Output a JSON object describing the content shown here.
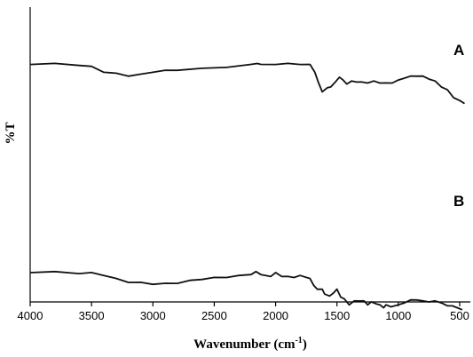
{
  "chart_data": {
    "type": "line",
    "xlabel": "Wavenumber (cm",
    "xlabel_sup": "-1",
    "xlabel_end": ")",
    "ylabel": "%T",
    "xlim": [
      4000,
      450
    ],
    "x_reversed": true,
    "xticks": [
      4000,
      3500,
      3000,
      2500,
      2000,
      1500,
      1000,
      500
    ],
    "grid": false,
    "series": [
      {
        "name": "A",
        "points": [
          [
            4000,
            0.8
          ],
          [
            3800,
            0.8
          ],
          [
            3600,
            0.79
          ],
          [
            3500,
            0.77
          ],
          [
            3400,
            0.72
          ],
          [
            3300,
            0.7
          ],
          [
            3200,
            0.68
          ],
          [
            3100,
            0.69
          ],
          [
            3000,
            0.72
          ],
          [
            2900,
            0.73
          ],
          [
            2800,
            0.74
          ],
          [
            2600,
            0.75
          ],
          [
            2400,
            0.77
          ],
          [
            2200,
            0.79
          ],
          [
            2150,
            0.81
          ],
          [
            2120,
            0.79
          ],
          [
            2000,
            0.8
          ],
          [
            1900,
            0.8
          ],
          [
            1800,
            0.8
          ],
          [
            1720,
            0.79
          ],
          [
            1680,
            0.72
          ],
          [
            1650,
            0.6
          ],
          [
            1620,
            0.52
          ],
          [
            1580,
            0.55
          ],
          [
            1550,
            0.57
          ],
          [
            1520,
            0.6
          ],
          [
            1480,
            0.67
          ],
          [
            1450,
            0.63
          ],
          [
            1420,
            0.6
          ],
          [
            1380,
            0.62
          ],
          [
            1340,
            0.62
          ],
          [
            1300,
            0.61
          ],
          [
            1250,
            0.61
          ],
          [
            1200,
            0.62
          ],
          [
            1150,
            0.61
          ],
          [
            1100,
            0.6
          ],
          [
            1050,
            0.61
          ],
          [
            1000,
            0.63
          ],
          [
            950,
            0.66
          ],
          [
            900,
            0.67
          ],
          [
            850,
            0.68
          ],
          [
            800,
            0.67
          ],
          [
            750,
            0.65
          ],
          [
            700,
            0.62
          ],
          [
            650,
            0.57
          ],
          [
            600,
            0.53
          ],
          [
            550,
            0.46
          ],
          [
            500,
            0.42
          ],
          [
            460,
            0.4
          ]
        ]
      },
      {
        "name": "B",
        "points": [
          [
            4000,
            0.16
          ],
          [
            3800,
            0.16
          ],
          [
            3600,
            0.15
          ],
          [
            3500,
            0.15
          ],
          [
            3400,
            0.13
          ],
          [
            3300,
            0.09
          ],
          [
            3200,
            0.06
          ],
          [
            3100,
            0.05
          ],
          [
            3000,
            0.04
          ],
          [
            2900,
            0.04
          ],
          [
            2800,
            0.05
          ],
          [
            2700,
            0.07
          ],
          [
            2600,
            0.09
          ],
          [
            2500,
            0.1
          ],
          [
            2400,
            0.11
          ],
          [
            2300,
            0.12
          ],
          [
            2200,
            0.14
          ],
          [
            2160,
            0.16
          ],
          [
            2120,
            0.14
          ],
          [
            2080,
            0.12
          ],
          [
            2040,
            0.12
          ],
          [
            2000,
            0.15
          ],
          [
            1950,
            0.12
          ],
          [
            1900,
            0.11
          ],
          [
            1850,
            0.11
          ],
          [
            1800,
            0.12
          ],
          [
            1720,
            0.1
          ],
          [
            1690,
            0.02
          ],
          [
            1660,
            -0.01
          ],
          [
            1620,
            -0.02
          ],
          [
            1600,
            -0.06
          ],
          [
            1560,
            -0.09
          ],
          [
            1530,
            -0.05
          ],
          [
            1500,
            -0.02
          ],
          [
            1470,
            -0.09
          ],
          [
            1440,
            -0.12
          ],
          [
            1400,
            -0.17
          ],
          [
            1360,
            -0.14
          ],
          [
            1320,
            -0.13
          ],
          [
            1280,
            -0.14
          ],
          [
            1250,
            -0.17
          ],
          [
            1220,
            -0.15
          ],
          [
            1180,
            -0.16
          ],
          [
            1150,
            -0.18
          ],
          [
            1120,
            -0.2
          ],
          [
            1100,
            -0.18
          ],
          [
            1060,
            -0.19
          ],
          [
            1000,
            -0.18
          ],
          [
            950,
            -0.15
          ],
          [
            900,
            -0.13
          ],
          [
            850,
            -0.12
          ],
          [
            800,
            -0.14
          ],
          [
            750,
            -0.14
          ],
          [
            700,
            -0.14
          ],
          [
            650,
            -0.15
          ],
          [
            600,
            -0.19
          ],
          [
            560,
            -0.18
          ],
          [
            520,
            -0.21
          ],
          [
            480,
            -0.22
          ]
        ]
      }
    ]
  }
}
